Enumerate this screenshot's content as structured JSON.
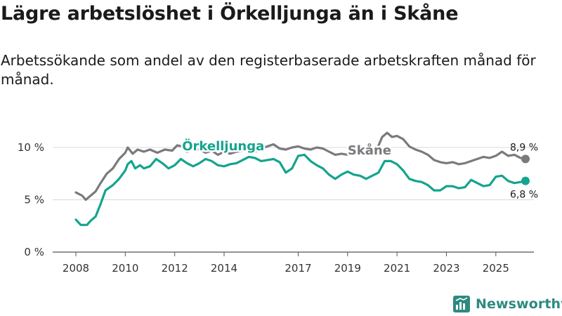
{
  "title": "Lägre arbetslöshet i Örkelljunga än i Skåne",
  "subtitle": "Arbetssökande som andel av den registerbaserade arbetskraften månad för månad.",
  "brand": "Newsworthy",
  "colors": {
    "orkelljunga": "#13a48e",
    "skane": "#7b797d",
    "grid": "#d9d9d9",
    "axis": "#555555",
    "brand": "#2d8a7f"
  },
  "chart_data": {
    "type": "line",
    "title": "Lägre arbetslöshet i Örkelljunga än i Skåne",
    "xlabel": "",
    "ylabel": "",
    "xlim": [
      2008.0,
      2026.75
    ],
    "ylim": [
      0,
      10
    ],
    "grid": true,
    "x_ticks": [
      {
        "value": 2008,
        "label": "2008"
      },
      {
        "value": 2010,
        "label": "2010"
      },
      {
        "value": 2012,
        "label": "2012"
      },
      {
        "value": 2014,
        "label": "2014"
      },
      {
        "value": 2017,
        "label": "2017"
      },
      {
        "value": 2019,
        "label": "2019"
      },
      {
        "value": 2021,
        "label": "2021"
      },
      {
        "value": 2023,
        "label": "2023"
      },
      {
        "value": 2025,
        "label": "2025"
      }
    ],
    "y_ticks": [
      {
        "value": 0,
        "label": "0 %"
      },
      {
        "value": 5,
        "label": "5 %"
      },
      {
        "value": 10,
        "label": "10 %"
      }
    ],
    "series": [
      {
        "name": "Skåne",
        "label": "Skåne",
        "end_label": "8,9 %",
        "color": "#7b797d",
        "points": [
          [
            2008.0,
            5.7
          ],
          [
            2008.25,
            5.4
          ],
          [
            2008.4,
            5.0
          ],
          [
            2008.6,
            5.4
          ],
          [
            2008.8,
            5.8
          ],
          [
            2009.0,
            6.6
          ],
          [
            2009.25,
            7.5
          ],
          [
            2009.5,
            8.0
          ],
          [
            2009.75,
            8.9
          ],
          [
            2010.0,
            9.5
          ],
          [
            2010.1,
            10.0
          ],
          [
            2010.3,
            9.4
          ],
          [
            2010.5,
            9.8
          ],
          [
            2010.75,
            9.6
          ],
          [
            2011.0,
            9.8
          ],
          [
            2011.3,
            9.5
          ],
          [
            2011.6,
            9.8
          ],
          [
            2011.9,
            9.7
          ],
          [
            2012.1,
            10.2
          ],
          [
            2012.3,
            10.1
          ],
          [
            2012.5,
            9.6
          ],
          [
            2012.7,
            9.8
          ],
          [
            2013.0,
            9.8
          ],
          [
            2013.25,
            9.5
          ],
          [
            2013.5,
            9.7
          ],
          [
            2013.75,
            9.3
          ],
          [
            2014.0,
            9.6
          ],
          [
            2014.25,
            9.4
          ],
          [
            2014.5,
            9.6
          ],
          [
            2014.75,
            9.7
          ],
          [
            2015.0,
            9.8
          ],
          [
            2015.25,
            9.6
          ],
          [
            2015.5,
            9.9
          ],
          [
            2015.75,
            10.1
          ],
          [
            2016.0,
            10.3
          ],
          [
            2016.25,
            9.9
          ],
          [
            2016.5,
            9.8
          ],
          [
            2016.75,
            10.0
          ],
          [
            2017.0,
            10.1
          ],
          [
            2017.25,
            9.9
          ],
          [
            2017.5,
            9.8
          ],
          [
            2017.75,
            10.0
          ],
          [
            2018.0,
            9.9
          ],
          [
            2018.25,
            9.6
          ],
          [
            2018.5,
            9.3
          ],
          [
            2018.75,
            9.4
          ],
          [
            2019.0,
            9.3
          ],
          [
            2019.25,
            9.6
          ],
          [
            2019.5,
            9.5
          ],
          [
            2019.75,
            9.4
          ],
          [
            2020.0,
            9.6
          ],
          [
            2020.2,
            9.9
          ],
          [
            2020.4,
            11.0
          ],
          [
            2020.6,
            11.4
          ],
          [
            2020.8,
            11.0
          ],
          [
            2021.0,
            11.1
          ],
          [
            2021.25,
            10.8
          ],
          [
            2021.5,
            10.1
          ],
          [
            2021.75,
            9.8
          ],
          [
            2022.0,
            9.6
          ],
          [
            2022.25,
            9.3
          ],
          [
            2022.5,
            8.8
          ],
          [
            2022.75,
            8.6
          ],
          [
            2023.0,
            8.5
          ],
          [
            2023.25,
            8.6
          ],
          [
            2023.5,
            8.4
          ],
          [
            2023.75,
            8.5
          ],
          [
            2024.0,
            8.7
          ],
          [
            2024.25,
            8.9
          ],
          [
            2024.5,
            9.1
          ],
          [
            2024.75,
            9.0
          ],
          [
            2025.0,
            9.2
          ],
          [
            2025.25,
            9.6
          ],
          [
            2025.5,
            9.2
          ],
          [
            2025.75,
            9.3
          ],
          [
            2026.0,
            9.0
          ],
          [
            2026.2,
            8.9
          ]
        ]
      },
      {
        "name": "Örkelljunga",
        "label": "Örkelljunga",
        "end_label": "6,8 %",
        "color": "#13a48e",
        "points": [
          [
            2008.0,
            3.1
          ],
          [
            2008.2,
            2.6
          ],
          [
            2008.45,
            2.6
          ],
          [
            2008.6,
            3.0
          ],
          [
            2008.8,
            3.4
          ],
          [
            2009.0,
            4.6
          ],
          [
            2009.2,
            5.9
          ],
          [
            2009.5,
            6.4
          ],
          [
            2009.75,
            7.0
          ],
          [
            2010.0,
            7.8
          ],
          [
            2010.1,
            8.4
          ],
          [
            2010.25,
            8.7
          ],
          [
            2010.4,
            8.0
          ],
          [
            2010.6,
            8.3
          ],
          [
            2010.75,
            8.0
          ],
          [
            2011.0,
            8.2
          ],
          [
            2011.25,
            8.9
          ],
          [
            2011.5,
            8.5
          ],
          [
            2011.75,
            8.0
          ],
          [
            2012.0,
            8.3
          ],
          [
            2012.25,
            8.9
          ],
          [
            2012.5,
            8.5
          ],
          [
            2012.75,
            8.2
          ],
          [
            2013.0,
            8.5
          ],
          [
            2013.25,
            8.9
          ],
          [
            2013.5,
            8.7
          ],
          [
            2013.75,
            8.3
          ],
          [
            2014.0,
            8.2
          ],
          [
            2014.25,
            8.4
          ],
          [
            2014.5,
            8.5
          ],
          [
            2014.75,
            8.8
          ],
          [
            2015.0,
            9.1
          ],
          [
            2015.25,
            9.0
          ],
          [
            2015.5,
            8.7
          ],
          [
            2015.75,
            8.8
          ],
          [
            2016.0,
            8.9
          ],
          [
            2016.25,
            8.6
          ],
          [
            2016.5,
            7.6
          ],
          [
            2016.75,
            8.0
          ],
          [
            2017.0,
            9.2
          ],
          [
            2017.25,
            9.3
          ],
          [
            2017.5,
            8.7
          ],
          [
            2017.75,
            8.3
          ],
          [
            2018.0,
            8.0
          ],
          [
            2018.25,
            7.4
          ],
          [
            2018.5,
            7.0
          ],
          [
            2018.75,
            7.4
          ],
          [
            2019.0,
            7.7
          ],
          [
            2019.25,
            7.4
          ],
          [
            2019.5,
            7.3
          ],
          [
            2019.75,
            7.0
          ],
          [
            2020.0,
            7.3
          ],
          [
            2020.25,
            7.6
          ],
          [
            2020.5,
            8.7
          ],
          [
            2020.75,
            8.7
          ],
          [
            2021.0,
            8.4
          ],
          [
            2021.25,
            7.8
          ],
          [
            2021.5,
            7.0
          ],
          [
            2021.75,
            6.8
          ],
          [
            2022.0,
            6.7
          ],
          [
            2022.25,
            6.4
          ],
          [
            2022.5,
            5.9
          ],
          [
            2022.75,
            5.9
          ],
          [
            2023.0,
            6.3
          ],
          [
            2023.25,
            6.3
          ],
          [
            2023.5,
            6.1
          ],
          [
            2023.75,
            6.2
          ],
          [
            2024.0,
            6.9
          ],
          [
            2024.25,
            6.6
          ],
          [
            2024.5,
            6.3
          ],
          [
            2024.75,
            6.4
          ],
          [
            2025.0,
            7.2
          ],
          [
            2025.25,
            7.3
          ],
          [
            2025.5,
            6.8
          ],
          [
            2025.75,
            6.6
          ],
          [
            2026.0,
            6.7
          ],
          [
            2026.2,
            6.8
          ]
        ]
      }
    ]
  }
}
